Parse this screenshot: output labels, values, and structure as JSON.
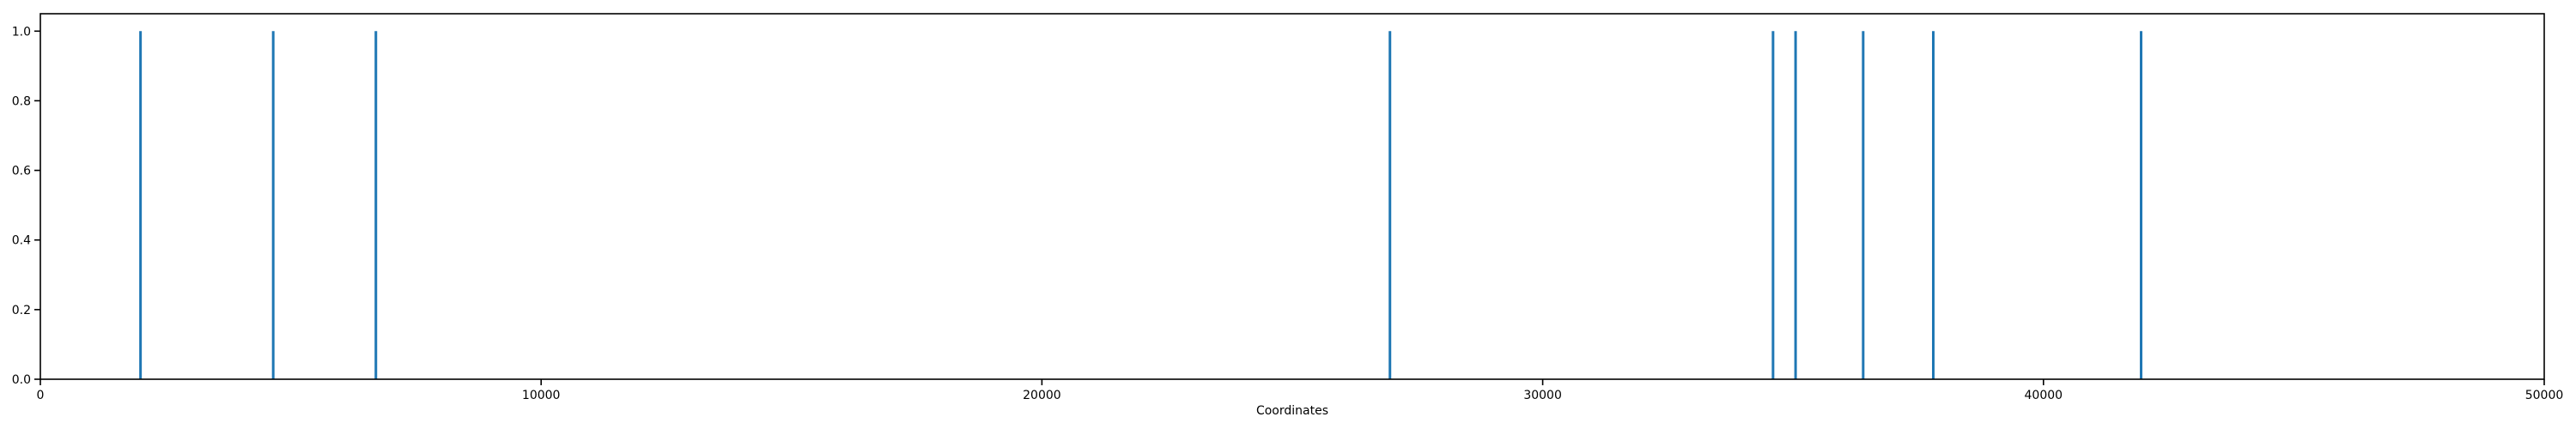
{
  "chart_data": {
    "type": "bar",
    "title": "",
    "xlabel": "Coordinates",
    "ylabel": "",
    "xlim": [
      0,
      50000
    ],
    "ylim": [
      0,
      1.05
    ],
    "grid": false,
    "color": "#1f77b4",
    "x_ticks": [
      {
        "value": 0,
        "label": "0"
      },
      {
        "value": 10000,
        "label": "10000"
      },
      {
        "value": 20000,
        "label": "20000"
      },
      {
        "value": 30000,
        "label": "30000"
      },
      {
        "value": 40000,
        "label": "40000"
      },
      {
        "value": 50000,
        "label": "50000"
      }
    ],
    "y_ticks": [
      {
        "value": 0.0,
        "label": "0.0"
      },
      {
        "value": 0.2,
        "label": "0.2"
      },
      {
        "value": 0.4,
        "label": "0.4"
      },
      {
        "value": 0.6,
        "label": "0.6"
      },
      {
        "value": 0.8,
        "label": "0.8"
      },
      {
        "value": 1.0,
        "label": "1.0"
      }
    ],
    "points": [
      {
        "x": 2000,
        "y": 1
      },
      {
        "x": 4650,
        "y": 1
      },
      {
        "x": 6700,
        "y": 1
      },
      {
        "x": 26950,
        "y": 1
      },
      {
        "x": 34600,
        "y": 1
      },
      {
        "x": 35050,
        "y": 1
      },
      {
        "x": 36400,
        "y": 1
      },
      {
        "x": 37800,
        "y": 1
      },
      {
        "x": 41950,
        "y": 1
      }
    ]
  }
}
